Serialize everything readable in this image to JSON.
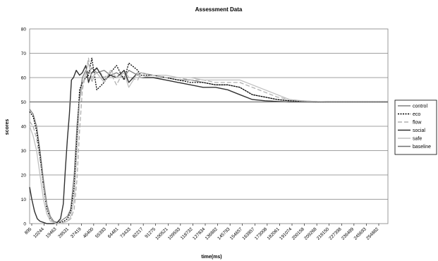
{
  "chart_data": {
    "type": "line",
    "title": "Assessment Data",
    "xlabel": "time(ms)",
    "ylabel": "scores",
    "ylim": [
      0,
      80
    ],
    "yticks": [
      0,
      10,
      20,
      30,
      40,
      50,
      60,
      70,
      80
    ],
    "xlim": [
      895,
      263000
    ],
    "xticks": [
      "895",
      "10244",
      "19463",
      "28531",
      "37419",
      "46400",
      "55393",
      "64481",
      "73433",
      "82217",
      "91275",
      "100521",
      "109593",
      "118732",
      "127834",
      "136882",
      "145793",
      "154657",
      "163857",
      "173008",
      "182061",
      "191074",
      "200158",
      "209268",
      "218150",
      "227398",
      "236489",
      "245693",
      "254882"
    ],
    "grid": "horizontal",
    "legend_position": "right",
    "series": [
      {
        "name": "control",
        "color": "#808080",
        "style": "solid",
        "x": [
          895,
          3500,
          6000,
          8500,
          11000,
          13500,
          16000,
          18500,
          21000,
          23500,
          26000,
          28531,
          31000,
          33500,
          35500,
          37419,
          39500,
          42000,
          44000,
          46400,
          50000,
          55393,
          60000,
          64481,
          70000,
          73433,
          80000,
          82217,
          91275,
          100521,
          109593,
          118732,
          127834,
          136882,
          145793,
          154657,
          163857,
          173008,
          182061,
          191074,
          200158,
          209268,
          218150,
          227398,
          236489,
          245693,
          254882,
          263000
        ],
        "y": [
          47,
          45,
          40,
          30,
          18,
          8,
          3,
          1,
          0.5,
          1,
          2,
          3,
          6,
          20,
          40,
          52,
          60,
          63,
          62,
          64,
          62,
          63,
          61,
          62,
          60,
          63,
          61,
          62,
          61,
          60,
          59,
          59,
          58,
          57,
          57,
          56,
          53,
          52,
          51,
          50.5,
          50.2,
          50,
          50,
          50,
          50,
          50,
          50,
          50
        ]
      },
      {
        "name": "eco",
        "color": "#000000",
        "style": "dot",
        "x": [
          895,
          3500,
          6000,
          8500,
          11000,
          13500,
          16000,
          18500,
          21000,
          23500,
          26000,
          28531,
          31000,
          33500,
          35500,
          37419,
          39500,
          42000,
          44000,
          46400,
          50000,
          55393,
          60000,
          64481,
          70000,
          73433,
          80000,
          82217,
          91275,
          100521,
          109593,
          118732,
          127834,
          136882,
          145793,
          154657,
          163857,
          173008,
          182061,
          191074,
          200158,
          209268,
          218150,
          227398,
          236489,
          245693,
          254882,
          263000
        ],
        "y": [
          46,
          44,
          38,
          28,
          15,
          6,
          2,
          0.5,
          0,
          0.5,
          1,
          2,
          5,
          15,
          35,
          55,
          58,
          60,
          61,
          68,
          55,
          58,
          62,
          65,
          59,
          66,
          63,
          61,
          61,
          60,
          59,
          58,
          58,
          57,
          57,
          56,
          53,
          52,
          51,
          50.5,
          50.2,
          50,
          50,
          50,
          50,
          50,
          50,
          50
        ]
      },
      {
        "name": "flow",
        "color": "#b0b0b0",
        "style": "dash",
        "x": [
          895,
          3500,
          6000,
          8500,
          11000,
          13500,
          16000,
          18500,
          21000,
          23500,
          26000,
          28531,
          31000,
          33500,
          35500,
          37419,
          39500,
          42000,
          44000,
          46400,
          50000,
          55393,
          60000,
          64481,
          70000,
          73433,
          80000,
          82217,
          91275,
          100521,
          109593,
          118732,
          127834,
          136882,
          145793,
          154657,
          163857,
          173008,
          182061,
          191074,
          200158,
          209268,
          218150,
          227398,
          236489,
          245693,
          254882,
          263000
        ],
        "y": [
          42,
          40,
          35,
          26,
          15,
          7,
          2,
          0.5,
          0,
          0,
          0.5,
          1,
          2,
          6,
          18,
          38,
          55,
          62,
          68,
          58,
          64,
          60,
          62,
          57,
          63,
          60,
          59,
          62,
          61,
          60,
          60,
          59,
          59,
          58,
          58,
          58,
          56,
          54,
          52,
          51,
          50.5,
          50.2,
          50,
          50,
          50,
          50,
          50,
          50
        ]
      },
      {
        "name": "social",
        "color": "#303030",
        "style": "solid",
        "x": [
          895,
          2500,
          4500,
          6500,
          8500,
          11000,
          13500,
          16000,
          18500,
          21000,
          23500,
          25500,
          27000,
          28531,
          30000,
          31500,
          33000,
          35000,
          37419,
          39500,
          42000,
          44000,
          46400,
          50000,
          55393,
          60000,
          64481,
          70000,
          73433,
          80000,
          82217,
          91275,
          100521,
          109593,
          118732,
          127834,
          136882,
          145793,
          154657,
          163857,
          173008,
          182061,
          191074,
          200158,
          209268,
          218150,
          227398,
          236489,
          245693,
          254882,
          263000
        ],
        "y": [
          15,
          10,
          5,
          2,
          1,
          0.5,
          0,
          0,
          0,
          0.5,
          2,
          8,
          22,
          35,
          45,
          59,
          60,
          63,
          61,
          62,
          65,
          58,
          62,
          64,
          59,
          61,
          60,
          63,
          58,
          62,
          60,
          60,
          59,
          58,
          57,
          56,
          56,
          55,
          53,
          51,
          50.5,
          50.2,
          50,
          50,
          50,
          50,
          50,
          50,
          50,
          50,
          50
        ]
      },
      {
        "name": "safe",
        "color": "#c0c0c0",
        "style": "solid",
        "x": [
          895,
          3500,
          6000,
          8500,
          11000,
          13500,
          16000,
          18500,
          21000,
          23500,
          26000,
          28531,
          31000,
          33500,
          35500,
          37419,
          39500,
          42000,
          44000,
          46400,
          50000,
          55393,
          60000,
          64481,
          70000,
          73433,
          80000,
          82217,
          91275,
          100521,
          109593,
          118732,
          127834,
          136882,
          145793,
          154657,
          163857,
          173008,
          182061,
          191074,
          200158,
          209268,
          218150,
          227398,
          236489,
          245693,
          254882,
          263000
        ],
        "y": [
          40,
          36,
          30,
          20,
          10,
          4,
          1,
          0.5,
          0,
          0,
          0.5,
          1,
          3,
          10,
          30,
          50,
          57,
          62,
          66,
          60,
          62,
          58,
          63,
          60,
          62,
          56,
          62,
          60,
          61,
          61,
          60,
          60,
          59,
          59,
          59,
          59,
          57,
          55,
          53,
          51,
          50.5,
          50.2,
          50,
          50,
          50,
          50,
          50,
          50
        ]
      },
      {
        "name": "baseline",
        "color": "#707070",
        "style": "solid",
        "x": [
          895,
          263000
        ],
        "y": [
          50,
          50
        ]
      }
    ]
  }
}
